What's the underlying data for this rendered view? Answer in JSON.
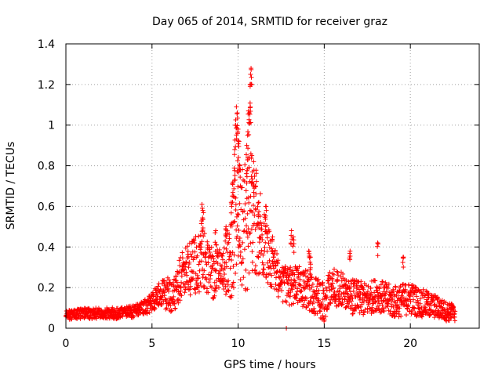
{
  "chart_data": {
    "type": "scatter",
    "title": "Day 065 of 2014, SRMTID for receiver graz",
    "xlabel": "GPS time / hours",
    "ylabel": "SRMTID / TECUs",
    "xlim": [
      0,
      24
    ],
    "ylim": [
      0,
      1.4
    ],
    "xticks": [
      0,
      5,
      10,
      15,
      20
    ],
    "xtick_labels": [
      "0",
      "5",
      "10",
      "15",
      "20"
    ],
    "yticks": [
      0,
      0.2,
      0.4,
      0.6,
      0.8,
      1,
      1.2,
      1.4
    ],
    "ytick_labels": [
      "0",
      "0.2",
      "0.4",
      "0.6",
      "0.8",
      "1",
      "1.2",
      "1.4"
    ],
    "grid": true,
    "marker": "plus",
    "series": [
      {
        "name": "SRMTID",
        "color": "#ff0000",
        "profile": [
          [
            0.0,
            0.06
          ],
          [
            1.0,
            0.07
          ],
          [
            2.0,
            0.07
          ],
          [
            3.0,
            0.07
          ],
          [
            4.0,
            0.08
          ],
          [
            4.8,
            0.11
          ],
          [
            5.5,
            0.16
          ],
          [
            6.2,
            0.16
          ],
          [
            6.8,
            0.26
          ],
          [
            7.5,
            0.3
          ],
          [
            8.0,
            0.32
          ],
          [
            8.5,
            0.25
          ],
          [
            9.0,
            0.28
          ],
          [
            9.5,
            0.3
          ],
          [
            9.9,
            0.5
          ],
          [
            10.3,
            0.42
          ],
          [
            10.7,
            0.55
          ],
          [
            11.0,
            0.5
          ],
          [
            11.5,
            0.4
          ],
          [
            12.0,
            0.3
          ],
          [
            12.5,
            0.22
          ],
          [
            13.0,
            0.2
          ],
          [
            13.5,
            0.2
          ],
          [
            14.0,
            0.18
          ],
          [
            14.5,
            0.15
          ],
          [
            15.0,
            0.12
          ],
          [
            15.5,
            0.2
          ],
          [
            16.0,
            0.18
          ],
          [
            16.5,
            0.15
          ],
          [
            17.0,
            0.14
          ],
          [
            17.5,
            0.13
          ],
          [
            18.0,
            0.16
          ],
          [
            18.5,
            0.14
          ],
          [
            19.0,
            0.12
          ],
          [
            19.5,
            0.13
          ],
          [
            20.0,
            0.14
          ],
          [
            20.5,
            0.12
          ],
          [
            21.0,
            0.11
          ],
          [
            21.5,
            0.1
          ],
          [
            22.0,
            0.08
          ],
          [
            22.6,
            0.07
          ]
        ],
        "spread": [
          [
            0.0,
            0.03
          ],
          [
            4.5,
            0.04
          ],
          [
            5.5,
            0.08
          ],
          [
            6.8,
            0.15
          ],
          [
            8.0,
            0.2
          ],
          [
            9.0,
            0.12
          ],
          [
            9.8,
            0.35
          ],
          [
            10.7,
            0.45
          ],
          [
            11.5,
            0.2
          ],
          [
            12.5,
            0.12
          ],
          [
            15.0,
            0.12
          ],
          [
            18.0,
            0.1
          ],
          [
            20.0,
            0.1
          ],
          [
            22.6,
            0.05
          ]
        ],
        "peaks": [
          [
            7.9,
            0.61
          ],
          [
            7.95,
            0.58
          ],
          [
            8.7,
            0.48
          ],
          [
            9.3,
            0.5
          ],
          [
            9.6,
            0.62
          ],
          [
            9.7,
            0.72
          ],
          [
            9.8,
            0.88
          ],
          [
            9.85,
            1.0
          ],
          [
            9.9,
            1.09
          ],
          [
            9.95,
            1.06
          ],
          [
            10.0,
            0.98
          ],
          [
            10.05,
            0.92
          ],
          [
            10.1,
            0.8
          ],
          [
            10.5,
            0.9
          ],
          [
            10.55,
            0.95
          ],
          [
            10.6,
            1.07
          ],
          [
            10.65,
            1.06
          ],
          [
            10.7,
            1.2
          ],
          [
            10.72,
            1.25
          ],
          [
            10.75,
            1.28
          ],
          [
            10.8,
            0.85
          ],
          [
            10.9,
            0.82
          ],
          [
            11.0,
            0.7
          ],
          [
            11.2,
            0.62
          ],
          [
            11.6,
            0.6
          ],
          [
            12.0,
            0.45
          ],
          [
            13.1,
            0.48
          ],
          [
            13.2,
            0.45
          ],
          [
            14.1,
            0.38
          ],
          [
            14.2,
            0.35
          ],
          [
            16.5,
            0.38
          ],
          [
            18.1,
            0.42
          ],
          [
            19.6,
            0.35
          ],
          [
            22.4,
            0.12
          ]
        ],
        "outliers": [
          [
            12.8,
            0.0
          ]
        ]
      }
    ]
  }
}
